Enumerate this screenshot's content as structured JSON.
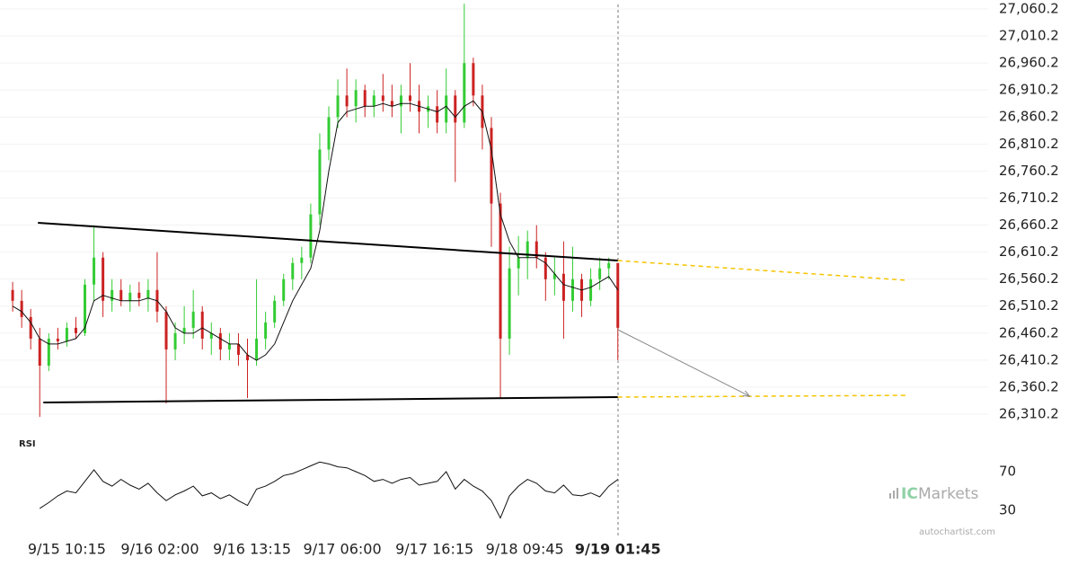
{
  "chart_data": [
    {
      "type": "candlestick",
      "open": [
        26540,
        26520,
        26490,
        26450,
        26400,
        26450,
        26445,
        26470,
        26460,
        26550,
        26600,
        26520,
        26540,
        26520,
        26535,
        26525,
        26540,
        26500,
        26430,
        26460,
        26470,
        26500,
        26450,
        26460,
        26430,
        26440,
        26420,
        26410,
        26450,
        26480,
        26520,
        26560,
        26590,
        26600,
        26680,
        26800,
        26860,
        26900,
        26880,
        26910,
        26880,
        26900,
        26890,
        26880,
        26900,
        26890,
        26870,
        26880,
        26850,
        26900,
        26850,
        26960,
        26900,
        26840,
        26700,
        26450,
        26580,
        26600,
        26630,
        26600,
        26560,
        26570,
        26520,
        26560,
        26520,
        26560,
        26580,
        26590
      ],
      "high": [
        26555,
        26540,
        26505,
        26470,
        26460,
        26470,
        26480,
        26490,
        26560,
        26660,
        26610,
        26560,
        26560,
        26550,
        26555,
        26560,
        26610,
        26510,
        26480,
        26510,
        26540,
        26510,
        26480,
        26470,
        26460,
        26460,
        26450,
        26560,
        26500,
        26530,
        26570,
        26600,
        26620,
        26700,
        26830,
        26880,
        26930,
        26950,
        26930,
        26920,
        26910,
        26940,
        26920,
        26920,
        26960,
        26920,
        26900,
        26910,
        26950,
        26910,
        27070,
        26970,
        26920,
        26860,
        26720,
        26620,
        26640,
        26650,
        26660,
        26610,
        26600,
        26630,
        26620,
        26570,
        26580,
        26600,
        26600,
        26590
      ],
      "low": [
        26500,
        26470,
        26430,
        26305,
        26390,
        26430,
        26435,
        26450,
        26455,
        26520,
        26490,
        26500,
        26510,
        26500,
        26510,
        26500,
        26480,
        26330,
        26410,
        26440,
        26450,
        26430,
        26420,
        26410,
        26410,
        26400,
        26340,
        26400,
        26430,
        26470,
        26510,
        26540,
        26560,
        26590,
        26660,
        26780,
        26840,
        26860,
        26850,
        26860,
        26860,
        26870,
        26860,
        26830,
        26870,
        26830,
        26840,
        26830,
        26830,
        26740,
        26840,
        26880,
        26800,
        26620,
        26340,
        26420,
        26530,
        26560,
        26580,
        26520,
        26530,
        26450,
        26500,
        26490,
        26510,
        26540,
        26560,
        26410
      ],
      "close": [
        26520,
        26490,
        26450,
        26400,
        26450,
        26445,
        26470,
        26460,
        26550,
        26600,
        26520,
        26540,
        26520,
        26535,
        26525,
        26540,
        26500,
        26430,
        26460,
        26470,
        26500,
        26450,
        26460,
        26430,
        26440,
        26420,
        26410,
        26450,
        26480,
        26520,
        26560,
        26590,
        26600,
        26680,
        26800,
        26860,
        26900,
        26880,
        26910,
        26880,
        26900,
        26890,
        26880,
        26900,
        26890,
        26870,
        26880,
        26850,
        26900,
        26850,
        26960,
        26900,
        26840,
        26700,
        26450,
        26580,
        26600,
        26630,
        26600,
        26560,
        26570,
        26520,
        26560,
        26520,
        26560,
        26580,
        26590,
        26470
      ],
      "up_color": "#33cc33",
      "down_color": "#cc2222",
      "ma": {
        "color": "#111111",
        "values": [
          26510,
          26500,
          26480,
          26450,
          26440,
          26440,
          26445,
          26450,
          26470,
          26520,
          26530,
          26525,
          26520,
          26520,
          26520,
          26525,
          26520,
          26500,
          26470,
          26460,
          26460,
          26470,
          26460,
          26450,
          26440,
          26440,
          26420,
          26410,
          26420,
          26440,
          26480,
          26520,
          26550,
          26580,
          26650,
          26760,
          26850,
          26870,
          26875,
          26880,
          26880,
          26885,
          26880,
          26885,
          26885,
          26880,
          26875,
          26870,
          26880,
          26860,
          26880,
          26890,
          26870,
          26800,
          26680,
          26630,
          26600,
          26600,
          26600,
          26590,
          26570,
          26550,
          26545,
          26540,
          26545,
          26555,
          26565,
          26540
        ]
      },
      "xlim": [
        -1.4,
        108
      ],
      "ylim": [
        26295.2,
        27076.8
      ],
      "yticks": [
        {
          "value": 26310.2,
          "label": "26,310.2"
        },
        {
          "value": 26360.2,
          "label": "26,360.2"
        },
        {
          "value": 26410.2,
          "label": "26,410.2"
        },
        {
          "value": 26460.2,
          "label": "26,460.2"
        },
        {
          "value": 26510.2,
          "label": "26,510.2"
        },
        {
          "value": 26560.2,
          "label": "26,560.2"
        },
        {
          "value": 26610.2,
          "label": "26,610.2"
        },
        {
          "value": 26660.2,
          "label": "26,660.2"
        },
        {
          "value": 26710.2,
          "label": "26,710.2"
        },
        {
          "value": 26760.2,
          "label": "26,760.2"
        },
        {
          "value": 26810.2,
          "label": "26,810.2"
        },
        {
          "value": 26860.2,
          "label": "26,860.2"
        },
        {
          "value": 26910.2,
          "label": "26,910.2"
        },
        {
          "value": 26960.2,
          "label": "26,960.2"
        },
        {
          "value": 27010.2,
          "label": "27,010.2"
        },
        {
          "value": 27060.2,
          "label": "27,060.2"
        }
      ],
      "xticks": [
        {
          "value": 6,
          "label": "9/15 10:15"
        },
        {
          "value": 16.3,
          "label": "9/16 02:00"
        },
        {
          "value": 26.5,
          "label": "9/16 13:15"
        },
        {
          "value": 36.5,
          "label": "9/17 06:00"
        },
        {
          "value": 46.7,
          "label": "9/17 16:15"
        },
        {
          "value": 56.7,
          "label": "9/18 09:45"
        },
        {
          "value": 67,
          "label": "9/19 01:45"
        }
      ],
      "grid": true,
      "trendlines": [
        {
          "color": "#000000",
          "dashed": false,
          "x": [
            2.8,
            67
          ],
          "y": [
            26664.4,
            26594.5
          ]
        },
        {
          "color": "#000000",
          "dashed": false,
          "x": [
            3.4,
            67
          ],
          "y": [
            26331.8,
            26341.8
          ]
        },
        {
          "color": "#f5c400",
          "dashed": true,
          "x": [
            67,
            99
          ],
          "y": [
            26594.5,
            26558
          ]
        },
        {
          "color": "#f5c400",
          "dashed": true,
          "x": [
            67,
            99
          ],
          "y": [
            26341.8,
            26345
          ]
        }
      ],
      "arrow": {
        "color": "#888888",
        "x": [
          67,
          81.6
        ],
        "y": [
          26466.5,
          26343.4
        ]
      }
    },
    {
      "type": "line",
      "title": "RSI",
      "series": [
        {
          "color": "#111111",
          "values": [
            null,
            null,
            null,
            32,
            38,
            45,
            50,
            48,
            60,
            72,
            60,
            55,
            62,
            56,
            52,
            58,
            48,
            40,
            46,
            50,
            55,
            45,
            48,
            42,
            46,
            40,
            35,
            52,
            55,
            60,
            66,
            68,
            72,
            76,
            80,
            78,
            75,
            74,
            70,
            66,
            60,
            62,
            58,
            62,
            64,
            56,
            58,
            60,
            70,
            52,
            62,
            55,
            50,
            40,
            22,
            45,
            55,
            62,
            58,
            50,
            48,
            56,
            46,
            45,
            48,
            44,
            55,
            62
          ]
        }
      ],
      "xlim": [
        -1.4,
        108
      ],
      "ylim": [
        10,
        100
      ],
      "yticks": [
        30,
        70
      ]
    }
  ],
  "watermark": {
    "logo_ic": "IC",
    "logo_markets": "Markets",
    "source": "autochartist.com"
  }
}
